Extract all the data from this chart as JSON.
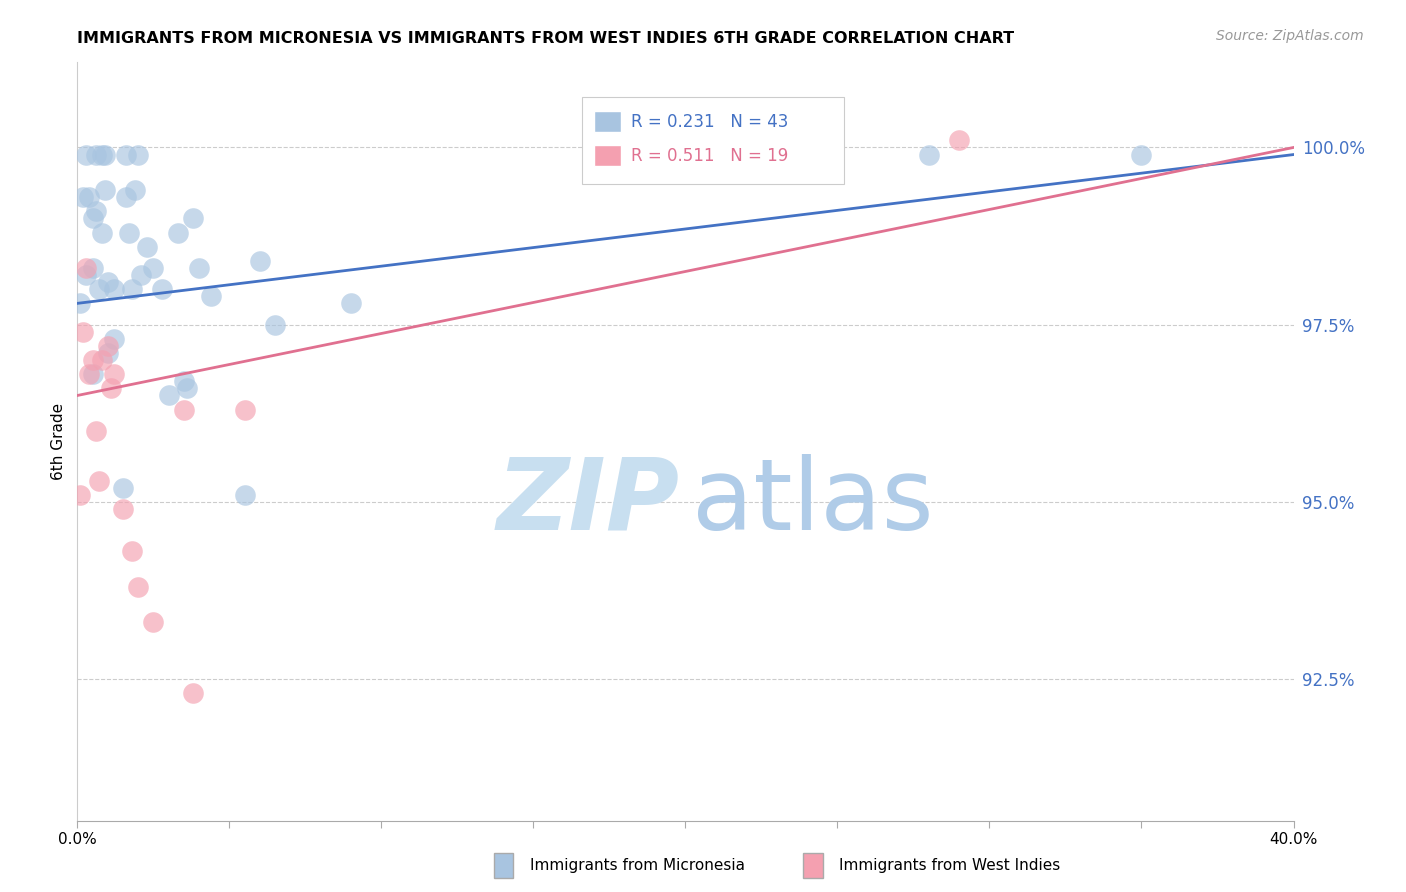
{
  "title": "IMMIGRANTS FROM MICRONESIA VS IMMIGRANTS FROM WEST INDIES 6TH GRADE CORRELATION CHART",
  "source": "Source: ZipAtlas.com",
  "ylabel": "6th Grade",
  "ytick_labels": [
    "100.0%",
    "97.5%",
    "95.0%",
    "92.5%"
  ],
  "ytick_values": [
    1.0,
    0.975,
    0.95,
    0.925
  ],
  "ymin": 0.905,
  "ymax": 1.012,
  "xmin": 0.0,
  "xmax": 0.4,
  "blue_R": 0.231,
  "blue_N": 43,
  "pink_R": 0.511,
  "pink_N": 19,
  "blue_color": "#a8c4e0",
  "pink_color": "#f4a0b0",
  "blue_line_color": "#4472c4",
  "pink_line_color": "#e07090",
  "watermark_zip_color": "#c8dff0",
  "watermark_atlas_color": "#b0cce8",
  "blue_scatter_x": [
    0.001,
    0.002,
    0.003,
    0.003,
    0.004,
    0.005,
    0.005,
    0.005,
    0.006,
    0.006,
    0.007,
    0.008,
    0.008,
    0.009,
    0.009,
    0.01,
    0.01,
    0.012,
    0.012,
    0.015,
    0.016,
    0.016,
    0.017,
    0.018,
    0.019,
    0.02,
    0.021,
    0.023,
    0.025,
    0.028,
    0.03,
    0.033,
    0.035,
    0.036,
    0.038,
    0.04,
    0.044,
    0.055,
    0.06,
    0.065,
    0.09,
    0.28,
    0.35
  ],
  "blue_scatter_y": [
    0.978,
    0.993,
    0.982,
    0.999,
    0.993,
    0.99,
    0.983,
    0.968,
    0.999,
    0.991,
    0.98,
    0.999,
    0.988,
    0.999,
    0.994,
    0.981,
    0.971,
    0.98,
    0.973,
    0.952,
    0.999,
    0.993,
    0.988,
    0.98,
    0.994,
    0.999,
    0.982,
    0.986,
    0.983,
    0.98,
    0.965,
    0.988,
    0.967,
    0.966,
    0.99,
    0.983,
    0.979,
    0.951,
    0.984,
    0.975,
    0.978,
    0.999,
    0.999
  ],
  "pink_scatter_x": [
    0.001,
    0.002,
    0.003,
    0.004,
    0.005,
    0.006,
    0.007,
    0.008,
    0.01,
    0.011,
    0.012,
    0.015,
    0.018,
    0.02,
    0.025,
    0.035,
    0.038,
    0.055,
    0.29
  ],
  "pink_scatter_y": [
    0.951,
    0.974,
    0.983,
    0.968,
    0.97,
    0.96,
    0.953,
    0.97,
    0.972,
    0.966,
    0.968,
    0.949,
    0.943,
    0.938,
    0.933,
    0.963,
    0.923,
    0.963,
    1.001
  ],
  "blue_trendline_x": [
    0.0,
    0.4
  ],
  "blue_trendline_y": [
    0.978,
    0.999
  ],
  "pink_trendline_x": [
    0.0,
    0.4
  ],
  "pink_trendline_y": [
    0.965,
    1.0
  ],
  "xtick_positions": [
    0.0,
    0.05,
    0.1,
    0.15,
    0.2,
    0.25,
    0.3,
    0.35,
    0.4
  ],
  "xtick_show_labels": [
    true,
    false,
    false,
    false,
    false,
    false,
    false,
    false,
    true
  ],
  "xtick_label_values": [
    "0.0%",
    "40.0%"
  ]
}
